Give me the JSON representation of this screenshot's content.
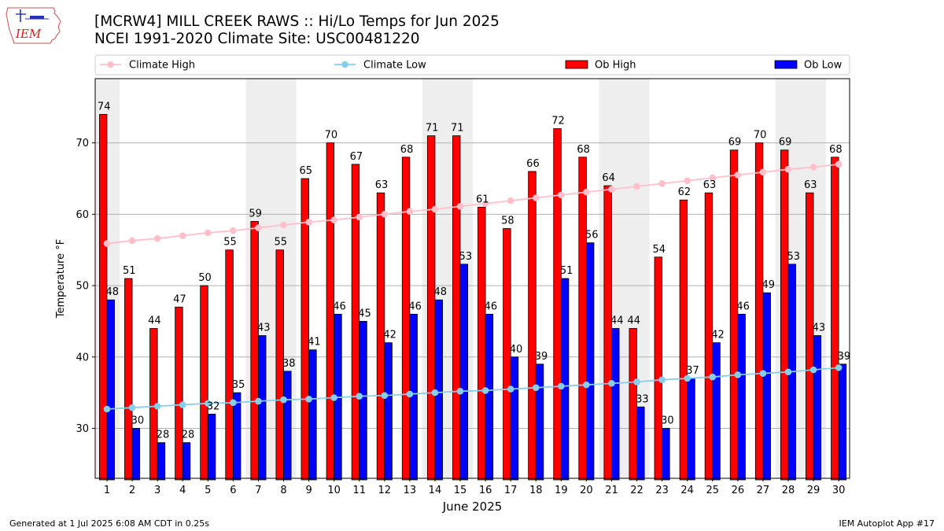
{
  "header": {
    "title_line1": "[MCRW4] MILL CREEK RAWS :: Hi/Lo Temps for Jun 2025",
    "title_line2": "NCEI 1991-2020 Climate Site: USC00481220"
  },
  "logo": {
    "text": "IEM",
    "icon": "iem-iowa-logo"
  },
  "footer": {
    "generated": "Generated at 1 Jul 2025 6:08 AM CDT in 0.25s",
    "app": "IEM Autoplot App #17"
  },
  "colors": {
    "ob_high": "#ff0000",
    "ob_low": "#0000ff",
    "climate_high": "#ffc0cb",
    "climate_low": "#87ceeb",
    "weekend_shade": "#eeeeee",
    "grid": "#b0b0b0"
  },
  "chart_data": {
    "type": "bar",
    "xlabel": "June 2025",
    "ylabel": "Temperature °F",
    "ylim": [
      23,
      79
    ],
    "yticks": [
      30,
      40,
      50,
      60,
      70
    ],
    "grid": "horizontal",
    "legend_position": "top",
    "categories": [
      "1",
      "2",
      "3",
      "4",
      "5",
      "6",
      "7",
      "8",
      "9",
      "10",
      "11",
      "12",
      "13",
      "14",
      "15",
      "16",
      "17",
      "18",
      "19",
      "20",
      "21",
      "22",
      "23",
      "24",
      "25",
      "26",
      "27",
      "28",
      "29",
      "30"
    ],
    "shaded_days": [
      1,
      7,
      8,
      14,
      15,
      21,
      22,
      28,
      29
    ],
    "series": [
      {
        "name": "Climate High",
        "kind": "line",
        "values": [
          55.9,
          56.3,
          56.6,
          57.0,
          57.4,
          57.7,
          58.1,
          58.5,
          58.9,
          59.2,
          59.6,
          60.0,
          60.4,
          60.7,
          61.1,
          61.5,
          61.9,
          62.3,
          62.7,
          63.1,
          63.5,
          63.9,
          64.3,
          64.7,
          65.1,
          65.5,
          65.9,
          66.3,
          66.6,
          67.0
        ]
      },
      {
        "name": "Climate Low",
        "kind": "line",
        "values": [
          32.7,
          32.9,
          33.1,
          33.3,
          33.5,
          33.6,
          33.8,
          34.0,
          34.1,
          34.3,
          34.5,
          34.6,
          34.8,
          35.0,
          35.2,
          35.3,
          35.5,
          35.7,
          35.9,
          36.1,
          36.3,
          36.5,
          36.8,
          37.0,
          37.2,
          37.5,
          37.7,
          37.9,
          38.2,
          38.5
        ]
      },
      {
        "name": "Ob High",
        "kind": "bar",
        "values": [
          74,
          51,
          44,
          47,
          50,
          55,
          59,
          55,
          65,
          70,
          67,
          63,
          68,
          71,
          71,
          61,
          58,
          66,
          72,
          68,
          64,
          44,
          54,
          62,
          63,
          69,
          70,
          69,
          63,
          68
        ]
      },
      {
        "name": "Ob Low",
        "kind": "bar",
        "values": [
          48,
          30,
          28,
          28,
          32,
          35,
          43,
          38,
          41,
          46,
          45,
          42,
          46,
          48,
          53,
          46,
          40,
          39,
          51,
          56,
          44,
          33,
          30,
          37,
          42,
          46,
          49,
          53,
          43,
          39
        ]
      }
    ]
  }
}
